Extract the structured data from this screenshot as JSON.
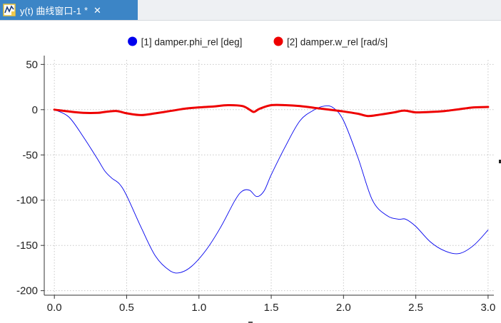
{
  "window": {
    "tab_title": "y(t) 曲线窗口-1",
    "modified_marker": "*",
    "tab_icon": "plot-window-icon",
    "close_icon": "close-icon"
  },
  "chart_data": {
    "type": "line",
    "title": "",
    "xlabel": "",
    "ylabel": "",
    "xlim": [
      -0.07,
      3.04
    ],
    "ylim": [
      -205,
      55
    ],
    "xticks": [
      0.0,
      0.5,
      1.0,
      1.5,
      2.0,
      2.5,
      3.0
    ],
    "xtick_labels": [
      "0.0",
      "0.5",
      "1.0",
      "1.5",
      "2.0",
      "2.5",
      "3.0"
    ],
    "yticks": [
      50,
      0,
      -50,
      -100,
      -150,
      -200
    ],
    "ytick_labels": [
      "50",
      "0",
      "-50",
      "-100",
      "-150",
      "-200"
    ],
    "grid": true,
    "legend_position": "top-center",
    "series": [
      {
        "name": "[1] damper.phi_rel [deg]",
        "color": "#0000ee",
        "line_width": "thin",
        "x": [
          0.0,
          0.1,
          0.2,
          0.3,
          0.35,
          0.4,
          0.45,
          0.5,
          0.6,
          0.7,
          0.8,
          0.87,
          0.95,
          1.05,
          1.15,
          1.25,
          1.3,
          1.35,
          1.4,
          1.45,
          1.5,
          1.6,
          1.7,
          1.8,
          1.87,
          1.93,
          2.0,
          2.1,
          2.2,
          2.3,
          2.38,
          2.43,
          2.5,
          2.6,
          2.7,
          2.8,
          2.9,
          3.0
        ],
        "y": [
          0,
          -8,
          -30,
          -55,
          -68,
          -76,
          -82,
          -95,
          -130,
          -162,
          -178,
          -180,
          -173,
          -155,
          -130,
          -100,
          -90,
          -89,
          -96,
          -90,
          -72,
          -40,
          -12,
          0,
          4,
          2,
          -12,
          -53,
          -100,
          -117,
          -121,
          -121,
          -129,
          -146,
          -156,
          -159,
          -150,
          -133
        ]
      },
      {
        "name": "[2] damper.w_rel [rad/s]",
        "color": "#ee0000",
        "line_width": "thick",
        "x": [
          0.0,
          0.1,
          0.2,
          0.3,
          0.35,
          0.43,
          0.5,
          0.6,
          0.7,
          0.8,
          0.9,
          1.0,
          1.1,
          1.2,
          1.3,
          1.35,
          1.38,
          1.42,
          1.5,
          1.6,
          1.7,
          1.8,
          1.9,
          2.0,
          2.1,
          2.17,
          2.25,
          2.35,
          2.42,
          2.5,
          2.6,
          2.7,
          2.8,
          2.9,
          3.0
        ],
        "y": [
          0,
          -2,
          -3.5,
          -3.5,
          -2.5,
          -1.5,
          -4,
          -6,
          -4,
          -1.5,
          1,
          2.5,
          3.5,
          5,
          4,
          0,
          -2.5,
          1,
          5,
          5,
          4,
          2,
          0,
          -2,
          -4.5,
          -7,
          -5.5,
          -3,
          -1,
          -3,
          -2.5,
          -1.5,
          0.5,
          2.5,
          3
        ]
      }
    ]
  }
}
